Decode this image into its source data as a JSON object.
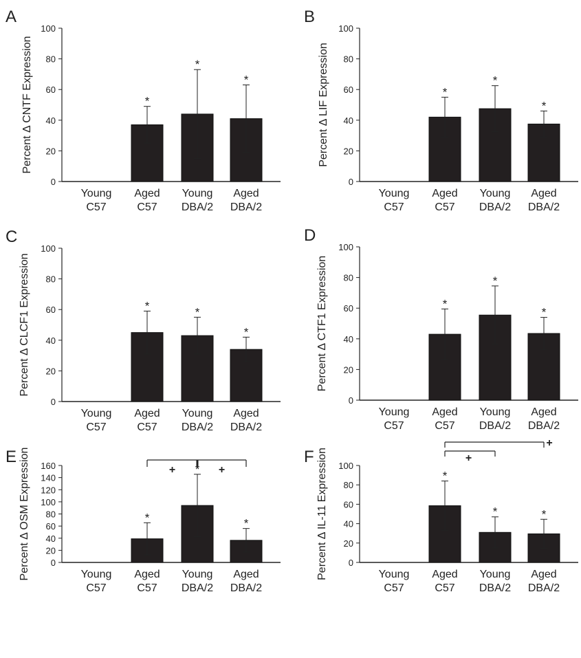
{
  "chart_data": [
    {
      "type": "bar",
      "panel": "A",
      "ylabel": "Percent Δ CNTF Expression",
      "ylim": [
        0,
        100
      ],
      "yticks": [
        0,
        20,
        40,
        60,
        80,
        100
      ],
      "categories": [
        [
          "Young",
          "C57"
        ],
        [
          "Aged",
          "C57"
        ],
        [
          "Young",
          "DBA/2"
        ],
        [
          "Aged",
          "DBA/2"
        ]
      ],
      "values": [
        0,
        37,
        44,
        41
      ],
      "error": [
        0,
        12,
        29,
        22
      ],
      "significance": [
        "",
        "*",
        "*",
        "*"
      ],
      "brackets": []
    },
    {
      "type": "bar",
      "panel": "B",
      "ylabel": "Percent Δ LIF Expression",
      "ylim": [
        0,
        100
      ],
      "yticks": [
        0,
        20,
        40,
        60,
        80,
        100
      ],
      "categories": [
        [
          "Young",
          "C57"
        ],
        [
          "Aged",
          "C57"
        ],
        [
          "Young",
          "DBA/2"
        ],
        [
          "Aged",
          "DBA/2"
        ]
      ],
      "values": [
        0,
        42,
        47.5,
        37.5
      ],
      "error": [
        0,
        13,
        15,
        8.5
      ],
      "significance": [
        "",
        "*",
        "*",
        "*"
      ],
      "brackets": []
    },
    {
      "type": "bar",
      "panel": "C",
      "ylabel": "Percent Δ CLCF1 Expression",
      "ylim": [
        0,
        100
      ],
      "yticks": [
        0,
        20,
        40,
        60,
        80,
        100
      ],
      "categories": [
        [
          "Young",
          "C57"
        ],
        [
          "Aged",
          "C57"
        ],
        [
          "Young",
          "DBA/2"
        ],
        [
          "Aged",
          "DBA/2"
        ]
      ],
      "values": [
        0,
        45,
        43,
        34
      ],
      "error": [
        0,
        14,
        12,
        8
      ],
      "significance": [
        "",
        "*",
        "*",
        "*"
      ],
      "brackets": []
    },
    {
      "type": "bar",
      "panel": "D",
      "ylabel": "Percent Δ CTF1 Expression",
      "ylim": [
        0,
        100
      ],
      "yticks": [
        0,
        20,
        40,
        60,
        80,
        100
      ],
      "categories": [
        [
          "Young",
          "C57"
        ],
        [
          "Aged",
          "C57"
        ],
        [
          "Young",
          "DBA/2"
        ],
        [
          "Aged",
          "DBA/2"
        ]
      ],
      "values": [
        0,
        43,
        55.5,
        43.5
      ],
      "error": [
        0,
        16.5,
        19,
        10.5
      ],
      "significance": [
        "",
        "*",
        "*",
        "*"
      ],
      "brackets": []
    },
    {
      "type": "bar",
      "panel": "E",
      "ylabel": "Percent Δ OSM Expression",
      "ylim": [
        0,
        160
      ],
      "yticks": [
        0,
        20,
        40,
        60,
        80,
        100,
        120,
        140,
        160
      ],
      "categories": [
        [
          "Young",
          "C57"
        ],
        [
          "Aged",
          "C57"
        ],
        [
          "Young",
          "DBA/2"
        ],
        [
          "Aged",
          "DBA/2"
        ]
      ],
      "values": [
        0,
        39,
        94,
        36.5
      ],
      "error": [
        0,
        26.5,
        51.5,
        19.5
      ],
      "significance": [
        "",
        "*",
        "*",
        "*"
      ],
      "brackets": [
        {
          "from": 1,
          "to": 2,
          "label": "+",
          "level": 0
        },
        {
          "from": 2,
          "to": 3,
          "label": "+",
          "level": 0
        }
      ]
    },
    {
      "type": "bar",
      "panel": "F",
      "ylabel": "Percent Δ IL-11 Expression",
      "ylim": [
        0,
        100
      ],
      "yticks": [
        0,
        20,
        40,
        60,
        80,
        100
      ],
      "categories": [
        [
          "Young",
          "C57"
        ],
        [
          "Aged",
          "C57"
        ],
        [
          "Young",
          "DBA/2"
        ],
        [
          "Aged",
          "DBA/2"
        ]
      ],
      "values": [
        0,
        58.5,
        31,
        29.5
      ],
      "error": [
        0,
        25.5,
        16,
        15
      ],
      "significance": [
        "",
        "*",
        "*",
        "*"
      ],
      "brackets": [
        {
          "from": 1,
          "to": 2,
          "label": "+",
          "level": 0
        },
        {
          "from": 1,
          "to": 3,
          "label": "+",
          "level": 1
        }
      ]
    }
  ]
}
